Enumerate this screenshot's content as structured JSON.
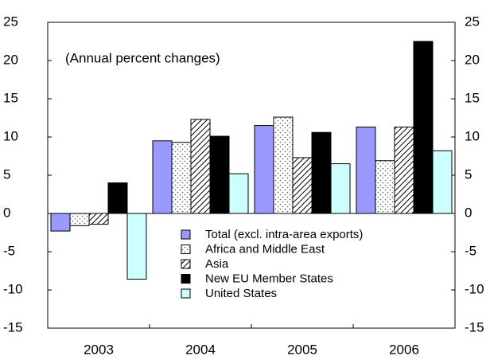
{
  "chart_data": {
    "type": "bar",
    "annotation": "(Annual percent changes)",
    "categories": [
      "2003",
      "2004",
      "2005",
      "2006"
    ],
    "series": [
      {
        "name": "Total (excl. intra-area exports)",
        "color": "#9999ff",
        "values": [
          -2.3,
          9.5,
          11.5,
          11.3
        ]
      },
      {
        "name": "Africa and Middle East",
        "color": "#ffffff",
        "pattern": "dots",
        "values": [
          -1.6,
          9.3,
          12.6,
          6.9
        ]
      },
      {
        "name": "Asia",
        "color": "#ffffff",
        "pattern": "hatch",
        "values": [
          -1.4,
          12.3,
          7.3,
          11.3
        ]
      },
      {
        "name": "New EU Member States",
        "color": "#000000",
        "values": [
          4.0,
          10.1,
          10.6,
          22.5
        ]
      },
      {
        "name": "United States",
        "color": "#ccffff",
        "values": [
          -8.6,
          5.2,
          6.5,
          8.2
        ]
      }
    ],
    "ylim": [
      -15,
      25
    ],
    "yticks": [
      -15,
      -10,
      -5,
      0,
      5,
      10,
      15,
      20,
      25
    ],
    "y2lim": [
      -15,
      25
    ],
    "y2ticks": [
      -15,
      -10,
      -5,
      0,
      5,
      10,
      15,
      20,
      25
    ],
    "grid": false,
    "legend": "lower center"
  }
}
